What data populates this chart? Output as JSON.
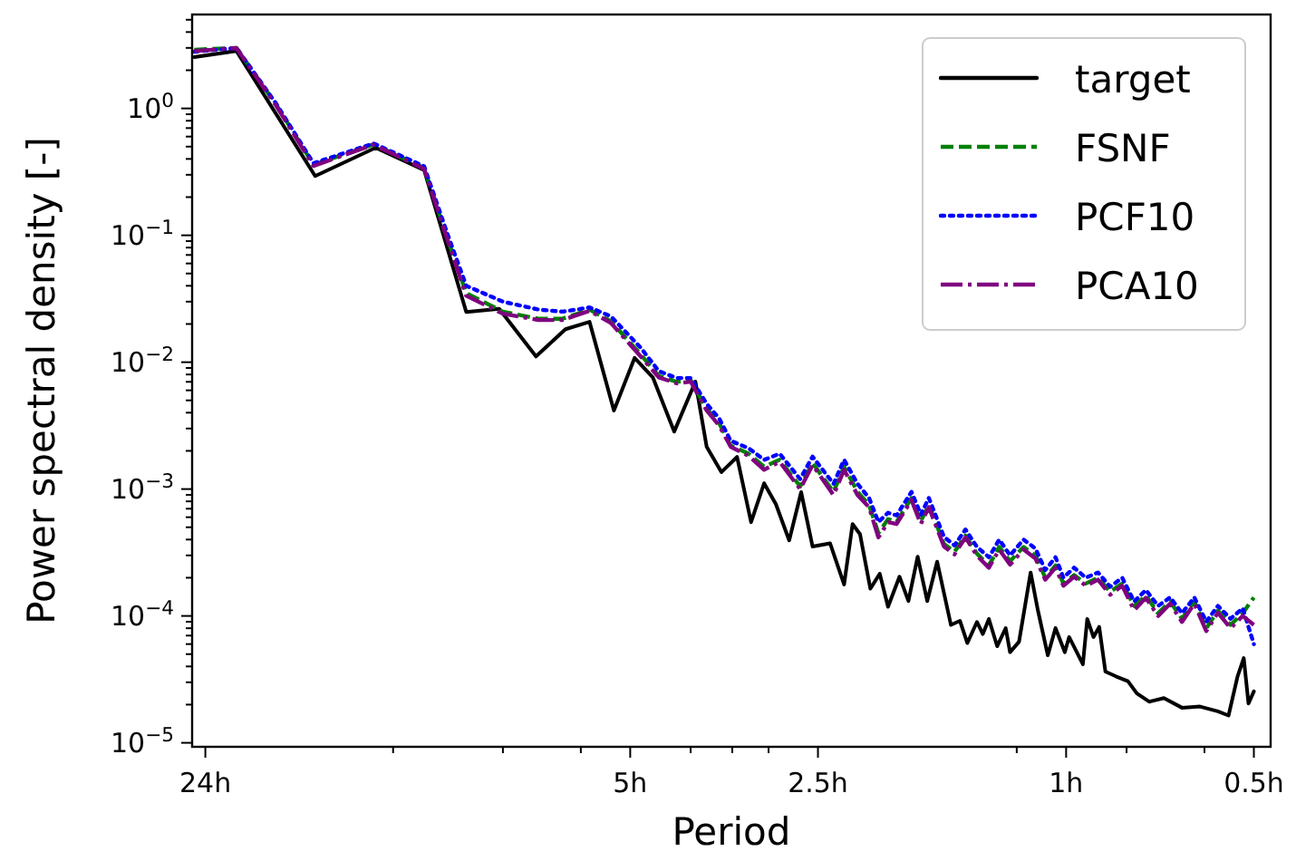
{
  "chart_data": {
    "type": "line",
    "xlabel": "Period",
    "ylabel": "Power spectral density [-]",
    "log": "xy",
    "legend": "top right",
    "grid": false,
    "xlim": [
      25.2,
      0.47
    ],
    "ylim": [
      9.3e-06,
      5.5
    ],
    "xticks": [
      {
        "value": 24,
        "label": "24h"
      },
      {
        "value": 12,
        "label": null
      },
      {
        "value": 8,
        "label": null
      },
      {
        "value": 6,
        "label": null
      },
      {
        "value": 5,
        "label": "5h"
      },
      {
        "value": 4,
        "label": null
      },
      {
        "value": 3.43,
        "label": null
      },
      {
        "value": 3,
        "label": null
      },
      {
        "value": 2.5,
        "label": "2.5h"
      },
      {
        "value": 1.2,
        "label": null
      },
      {
        "value": 1,
        "label": "1h"
      },
      {
        "value": 0.8,
        "label": null
      },
      {
        "value": 0.6,
        "label": null
      },
      {
        "value": 0.5,
        "label": "0.5h"
      }
    ],
    "yticks": [
      {
        "value": 1,
        "label": "10$^{0}$"
      },
      {
        "value": 0.1,
        "label": "10$^{−1}$"
      },
      {
        "value": 0.01,
        "label": "10$^{−2}$"
      },
      {
        "value": 0.001,
        "label": "10$^{−3}$"
      },
      {
        "value": 0.0001,
        "label": "10$^{−4}$"
      },
      {
        "value": 1e-05,
        "label": "10$^{−5}$"
      },
      {
        "value": 2,
        "label": null
      },
      {
        "value": 3,
        "label": null
      },
      {
        "value": 4,
        "label": null
      },
      {
        "value": 5,
        "label": null
      },
      {
        "value": 0.2,
        "label": null
      },
      {
        "value": 0.3,
        "label": null
      },
      {
        "value": 0.4,
        "label": null
      },
      {
        "value": 0.5,
        "label": null
      },
      {
        "value": 0.6,
        "label": null
      },
      {
        "value": 0.7,
        "label": null
      },
      {
        "value": 0.8,
        "label": null
      },
      {
        "value": 0.9,
        "label": null
      },
      {
        "value": 0.02,
        "label": null
      },
      {
        "value": 0.03,
        "label": null
      },
      {
        "value": 0.04,
        "label": null
      },
      {
        "value": 0.05,
        "label": null
      },
      {
        "value": 0.06,
        "label": null
      },
      {
        "value": 0.07,
        "label": null
      },
      {
        "value": 0.08,
        "label": null
      },
      {
        "value": 0.09,
        "label": null
      },
      {
        "value": 0.002,
        "label": null
      },
      {
        "value": 0.003,
        "label": null
      },
      {
        "value": 0.004,
        "label": null
      },
      {
        "value": 0.005,
        "label": null
      },
      {
        "value": 0.006,
        "label": null
      },
      {
        "value": 0.007,
        "label": null
      },
      {
        "value": 0.008,
        "label": null
      },
      {
        "value": 0.009,
        "label": null
      },
      {
        "value": 0.0002,
        "label": null
      },
      {
        "value": 0.0003,
        "label": null
      },
      {
        "value": 0.0004,
        "label": null
      },
      {
        "value": 0.0005,
        "label": null
      },
      {
        "value": 0.0006,
        "label": null
      },
      {
        "value": 0.0007,
        "label": null
      },
      {
        "value": 0.0008,
        "label": null
      },
      {
        "value": 0.0009,
        "label": null
      },
      {
        "value": 2e-05,
        "label": null
      },
      {
        "value": 3e-05,
        "label": null
      },
      {
        "value": 4e-05,
        "label": null
      },
      {
        "value": 5e-05,
        "label": null
      },
      {
        "value": 6e-05,
        "label": null
      },
      {
        "value": 7e-05,
        "label": null
      },
      {
        "value": 8e-05,
        "label": null
      },
      {
        "value": 9e-05,
        "label": null
      }
    ],
    "x": [
      25.0,
      21.4,
      18.5,
      16.1,
      12.9,
      10.7,
      9.8,
      9.16,
      8.0,
      7.02,
      6.42,
      5.81,
      5.37,
      4.81,
      4.5,
      4.21,
      4.0,
      3.77,
      3.6,
      3.45,
      3.23,
      3.05,
      2.88,
      2.67,
      2.55,
      2.36,
      2.27,
      2.16,
      2.07,
      2.0,
      1.93,
      1.87,
      1.77,
      1.71,
      1.66,
      1.57,
      1.51,
      1.45,
      1.39,
      1.33,
      1.28,
      1.23,
      1.17,
      1.12,
      1.08,
      1.04,
      1.01,
      0.971,
      0.93,
      0.889,
      0.85,
      0.813,
      0.778,
      0.745,
      0.712,
      0.681,
      0.652,
      0.623,
      0.596,
      0.571,
      0.545,
      0.521,
      0.5
    ],
    "series": [
      {
        "name": "target",
        "color": "#000000",
        "line_style": "solid",
        "x": [
          25.0,
          21.4,
          16.0,
          12.8,
          10.7,
          9.16,
          8.11,
          7.08,
          6.35,
          5.81,
          5.31,
          4.92,
          4.6,
          4.25,
          3.93,
          3.77,
          3.57,
          3.37,
          3.2,
          3.05,
          2.92,
          2.78,
          2.66,
          2.55,
          2.39,
          2.27,
          2.2,
          2.14,
          2.06,
          1.99,
          1.93,
          1.85,
          1.79,
          1.73,
          1.67,
          1.61,
          1.53,
          1.48,
          1.44,
          1.39,
          1.36,
          1.33,
          1.29,
          1.25,
          1.23,
          1.19,
          1.14,
          1.11,
          1.07,
          1.04,
          1.005,
          0.989,
          0.94,
          0.925,
          0.904,
          0.885,
          0.865,
          0.832,
          0.796,
          0.77,
          0.736,
          0.697,
          0.652,
          0.61,
          0.571,
          0.549,
          0.531,
          0.519,
          0.51,
          0.5
        ],
        "values": [
          2.54,
          2.84,
          0.293,
          0.49,
          0.327,
          0.0249,
          0.0263,
          0.0111,
          0.0182,
          0.0208,
          0.00416,
          0.0108,
          0.0076,
          0.00284,
          0.00703,
          0.00215,
          0.00136,
          0.00179,
          0.000548,
          0.00111,
          0.00076,
          0.000394,
          0.000946,
          0.000352,
          0.000373,
          0.000177,
          0.00053,
          0.00044,
          0.000164,
          0.000215,
          0.000118,
          0.000204,
          0.000131,
          0.000293,
          0.000131,
          0.000268,
          8.49e-05,
          9.15e-05,
          6.11e-05,
          8.97e-05,
          7.2e-05,
          9.46e-05,
          5.77e-05,
          8.02e-05,
          5.18e-05,
          6.25e-05,
          0.00022,
          0.000111,
          4.9e-05,
          8.02e-05,
          5.18e-05,
          6.81e-05,
          4.16e-05,
          9.46e-05,
          6.81e-05,
          8.2e-05,
          3.64e-05,
          3.34e-05,
          3.06e-05,
          2.45e-05,
          2.11e-05,
          2.25e-05,
          1.89e-05,
          1.93e-05,
          1.77e-05,
          1.64e-05,
          3.34e-05,
          4.65e-05,
          2.04e-05,
          2.54e-05
        ]
      },
      {
        "name": "FSNF",
        "color": "#008000",
        "line_style": "dashed",
        "values": [
          2.9,
          3.0,
          1.08,
          0.36,
          0.52,
          0.34,
          0.092,
          0.035,
          0.025,
          0.022,
          0.022,
          0.026,
          0.021,
          0.0115,
          0.0078,
          0.007,
          0.0072,
          0.0043,
          0.0033,
          0.0022,
          0.0019,
          0.0015,
          0.0017,
          0.00105,
          0.0016,
          0.00095,
          0.0015,
          0.00095,
          0.00075,
          0.00045,
          0.00058,
          0.00055,
          0.00085,
          0.00056,
          0.00075,
          0.00037,
          0.00032,
          0.00043,
          0.00031,
          0.00025,
          0.00035,
          0.00027,
          0.00035,
          0.0003,
          0.0002,
          0.00025,
          0.00018,
          0.00021,
          0.00018,
          0.0002,
          0.000155,
          0.00018,
          0.00012,
          0.000145,
          0.000105,
          0.00013,
          9.5e-05,
          0.00013,
          8e-05,
          0.00011,
          8.5e-05,
          0.000105,
          0.00014
        ]
      },
      {
        "name": "PCF10",
        "color": "#0000ff",
        "line_style": "dotted",
        "values": [
          2.8,
          3.0,
          1.1,
          0.37,
          0.53,
          0.35,
          0.1,
          0.04,
          0.03,
          0.026,
          0.025,
          0.027,
          0.023,
          0.013,
          0.0085,
          0.0075,
          0.0075,
          0.0047,
          0.0036,
          0.0024,
          0.0021,
          0.0017,
          0.0019,
          0.0012,
          0.0018,
          0.0011,
          0.0017,
          0.0011,
          0.00085,
          0.00055,
          0.00065,
          0.00062,
          0.00095,
          0.00063,
          0.00085,
          0.00042,
          0.00036,
          0.00048,
          0.00035,
          0.00029,
          0.0004,
          0.0003,
          0.0004,
          0.00034,
          0.00023,
          0.00029,
          0.0002,
          0.00024,
          0.0002,
          0.00022,
          0.00017,
          0.0002,
          0.00013,
          0.00016,
          0.00012,
          0.00014,
          0.000105,
          0.00014,
          9e-05,
          0.00012,
          9.5e-05,
          0.000115,
          6e-05
        ]
      },
      {
        "name": "PCA10",
        "color": "#800080",
        "line_style": "dashdot",
        "values": [
          2.84,
          2.99,
          1.06,
          0.352,
          0.518,
          0.334,
          0.0897,
          0.0334,
          0.0241,
          0.0215,
          0.0215,
          0.0254,
          0.0204,
          0.0111,
          0.0076,
          0.00681,
          0.00703,
          0.00416,
          0.00316,
          0.00215,
          0.00183,
          0.00142,
          0.00164,
          0.001,
          0.00155,
          0.000897,
          0.00142,
          0.000897,
          0.00072,
          0.000416,
          0.000548,
          0.00053,
          0.00082,
          0.00053,
          0.00072,
          0.000352,
          0.000306,
          0.000416,
          0.000299,
          0.00024,
          0.000334,
          0.000254,
          0.000334,
          0.000284,
          0.000193,
          0.00024,
          0.000173,
          0.000204,
          0.000173,
          0.000193,
          0.000147,
          0.000173,
          0.000111,
          0.000139,
          0.0001,
          0.000125,
          8.97e-05,
          0.000125,
          7.6e-05,
          0.000106,
          8e-05,
          0.0001,
          8.49e-05
        ]
      }
    ]
  }
}
